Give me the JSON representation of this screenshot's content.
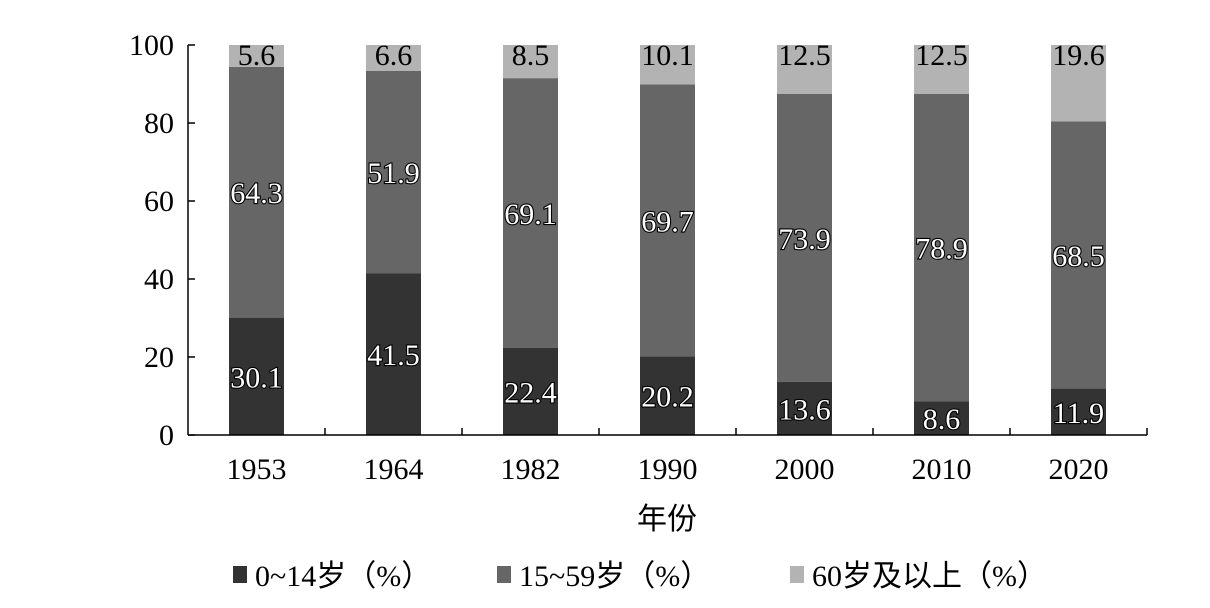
{
  "chart_data": {
    "type": "bar",
    "stacked": true,
    "title": "",
    "xlabel": "年份",
    "ylabel": "",
    "ylim": [
      0,
      100
    ],
    "yticks": [
      0,
      20,
      40,
      60,
      80,
      100
    ],
    "grid": false,
    "legend_position": "bottom",
    "categories": [
      "1953",
      "1964",
      "1982",
      "1990",
      "2000",
      "2010",
      "2020"
    ],
    "series": [
      {
        "name": "0~14岁（%）",
        "color": "#333333",
        "values": [
          30.1,
          41.5,
          22.4,
          20.2,
          13.6,
          8.6,
          11.9
        ]
      },
      {
        "name": "15~59岁（%）",
        "color": "#666666",
        "values": [
          64.3,
          51.9,
          69.1,
          69.7,
          73.9,
          78.9,
          68.5
        ]
      },
      {
        "name": "60岁及以上（%）",
        "color": "#b3b3b3",
        "values": [
          5.6,
          6.6,
          8.5,
          10.1,
          12.5,
          12.5,
          19.6
        ]
      }
    ]
  }
}
